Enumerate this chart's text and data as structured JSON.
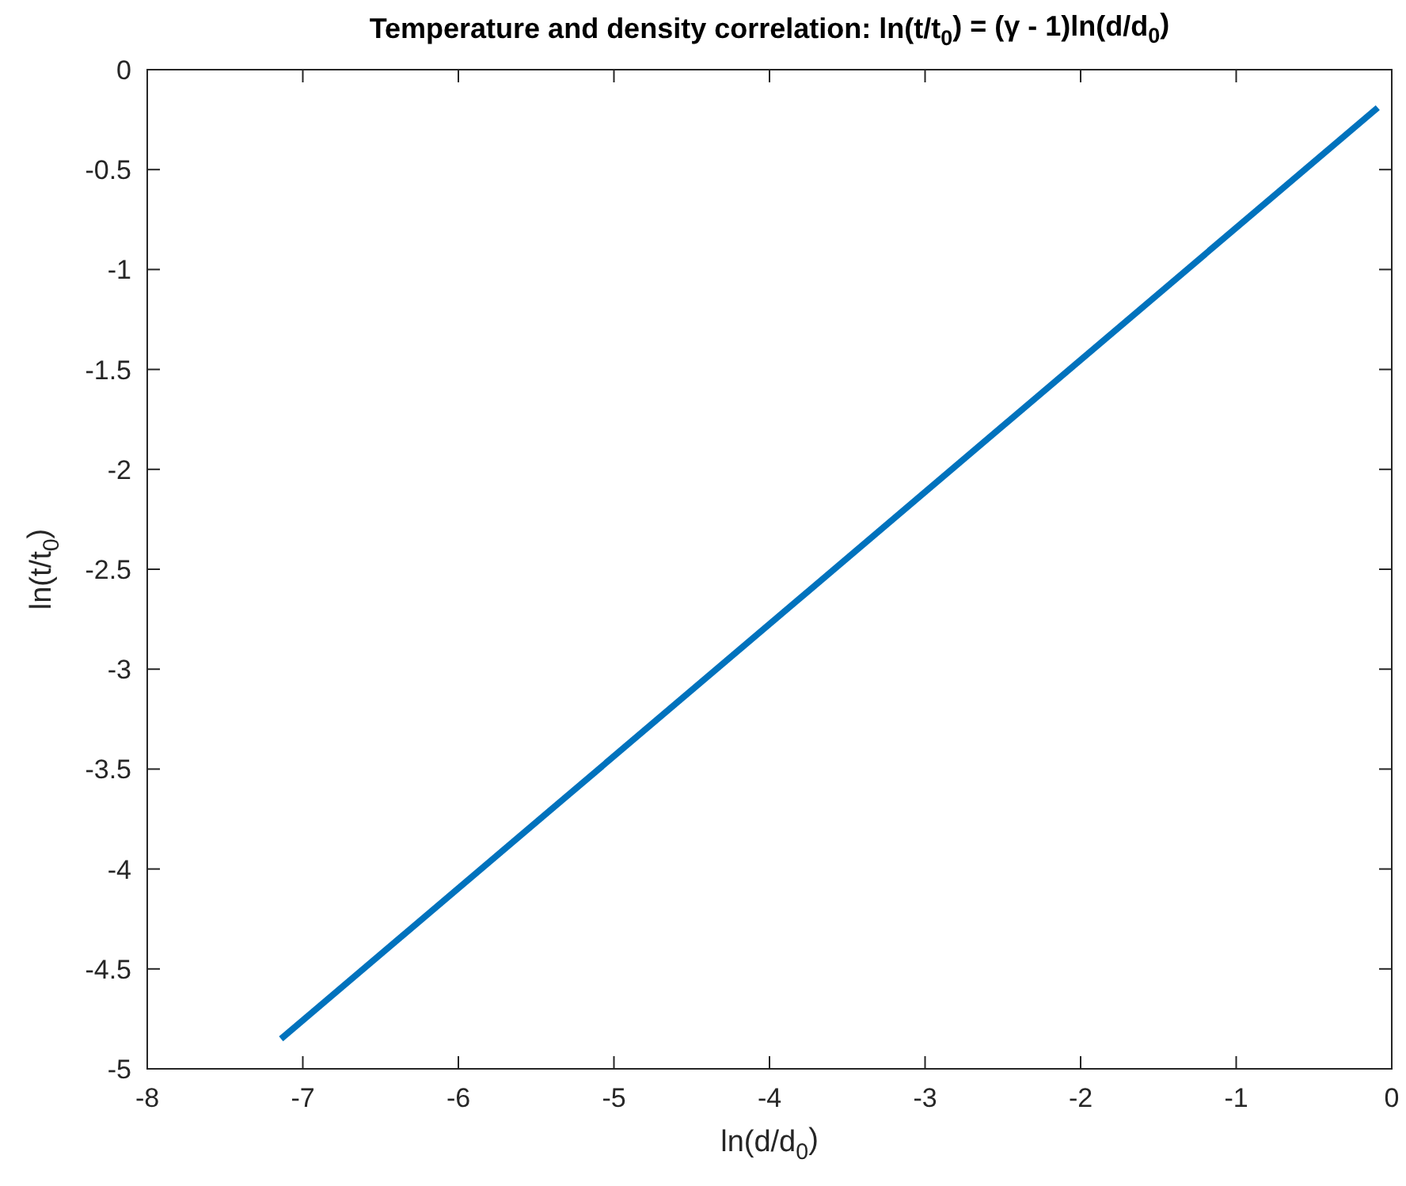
{
  "chart_data": {
    "type": "line",
    "title": "Temperature and density correlation: ln(t/t$_{0}$) = (γ - 1)ln(d/d$_{0}$)",
    "xlabel": "ln(d/d$_{0}$)",
    "ylabel": "ln(t/t$_{0}$)",
    "x": [
      -7.14,
      -0.09
    ],
    "series": [
      {
        "color": "#0072bd",
        "values": [
          -4.85,
          -0.19
        ]
      }
    ],
    "xlim": [
      -8,
      0
    ],
    "xticks": [
      -8,
      -7,
      -6,
      -5,
      -4,
      -3,
      -2,
      -1,
      0
    ],
    "ylim": [
      -5,
      0
    ],
    "yticks": [
      -5,
      -4.5,
      -4,
      -3.5,
      -3,
      -2.5,
      -2,
      -1.5,
      -1,
      -0.5,
      0
    ],
    "grid": false,
    "marker": "none",
    "line_style": "solid"
  }
}
